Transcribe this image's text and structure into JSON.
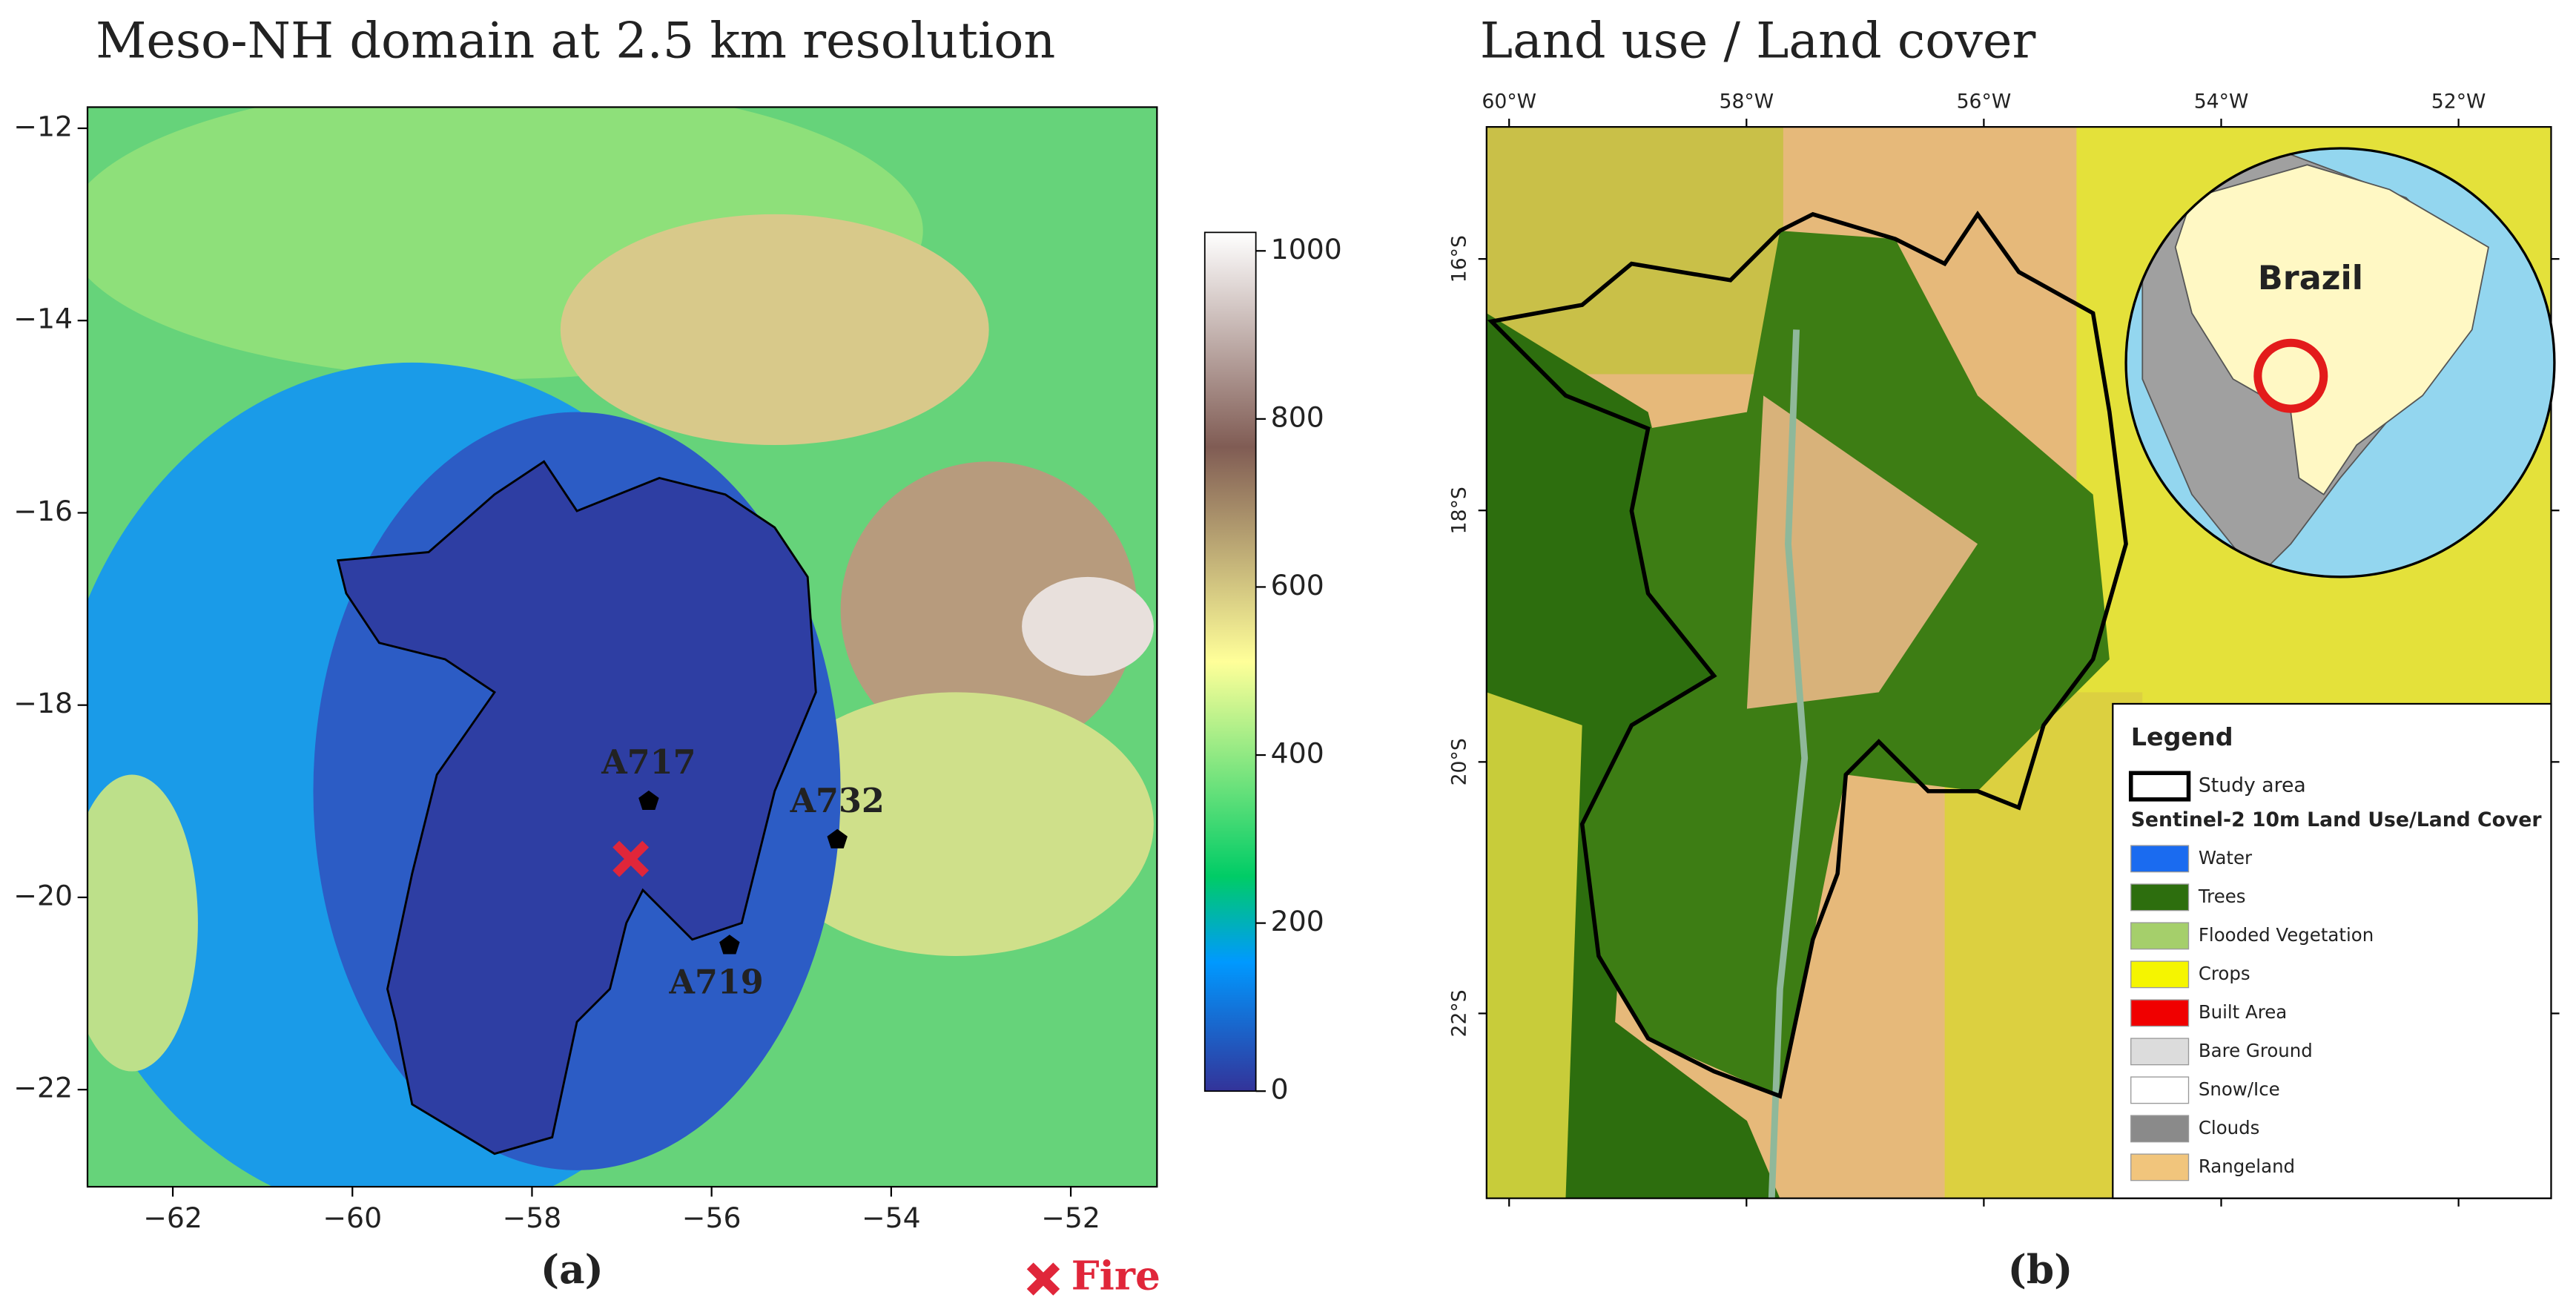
{
  "panel_a": {
    "title": "Meso-NH domain at 2.5 km resolution",
    "caption": "(a)",
    "xlim": [
      -62.95,
      -51.04
    ],
    "ylim": [
      -23.01,
      -11.78
    ],
    "xticks": [
      {
        "value": -62,
        "label": "−62"
      },
      {
        "value": -60,
        "label": "−60"
      },
      {
        "value": -58,
        "label": "−58"
      },
      {
        "value": -56,
        "label": "−56"
      },
      {
        "value": -54,
        "label": "−54"
      },
      {
        "value": -52,
        "label": "−52"
      }
    ],
    "yticks": [
      {
        "value": -12,
        "label": "−12"
      },
      {
        "value": -14,
        "label": "−14"
      },
      {
        "value": -16,
        "label": "−16"
      },
      {
        "value": -18,
        "label": "−18"
      },
      {
        "value": -20,
        "label": "−20"
      },
      {
        "value": -22,
        "label": "−22"
      }
    ],
    "colorbar_lim": [
      0,
      1022
    ],
    "colorbar_ticks": [
      0,
      200,
      400,
      600,
      800,
      1000
    ],
    "stations": [
      {
        "name": "A717",
        "lon": -56.7,
        "lat": -19.0
      },
      {
        "name": "A732",
        "lon": -54.6,
        "lat": -19.4
      },
      {
        "name": "A719",
        "lon": -55.8,
        "lat": -20.5
      }
    ],
    "fire": {
      "label": "Fire",
      "lon": -56.9,
      "lat": -19.6,
      "color": "#e0263a"
    }
  },
  "panel_b": {
    "title": "Land use / Land cover",
    "caption": "(b)",
    "xlim": [
      -60.19,
      -51.22
    ],
    "ylim": [
      -23.47,
      -14.95
    ],
    "xticks": [
      {
        "value": -60,
        "label": "60°W"
      },
      {
        "value": -58,
        "label": "58°W"
      },
      {
        "value": -56,
        "label": "56°W"
      },
      {
        "value": -54,
        "label": "54°W"
      },
      {
        "value": -52,
        "label": "52°W"
      }
    ],
    "yticks": [
      {
        "value": -16,
        "label": "16°S"
      },
      {
        "value": -18,
        "label": "18°S"
      },
      {
        "value": -20,
        "label": "20°S"
      },
      {
        "value": -22,
        "label": "22°S"
      }
    ],
    "inset_label": "Brazil",
    "legend": {
      "title": "Legend",
      "study_area": "Study area",
      "subtitle": "Sentinel-2 10m Land Use/Land Cover",
      "classes": [
        {
          "name": "Water",
          "color": "#1a6bf0"
        },
        {
          "name": "Trees",
          "color": "#2d6e0e"
        },
        {
          "name": "Flooded Vegetation",
          "color": "#a5cf6b"
        },
        {
          "name": "Crops",
          "color": "#f5f500"
        },
        {
          "name": "Built Area",
          "color": "#f00000"
        },
        {
          "name": "Bare Ground",
          "color": "#dcdcdc"
        },
        {
          "name": "Snow/Ice",
          "color": "#ffffff"
        },
        {
          "name": "Clouds",
          "color": "#8a8a8a"
        },
        {
          "name": "Rangeland",
          "color": "#f1c57c"
        }
      ]
    }
  }
}
